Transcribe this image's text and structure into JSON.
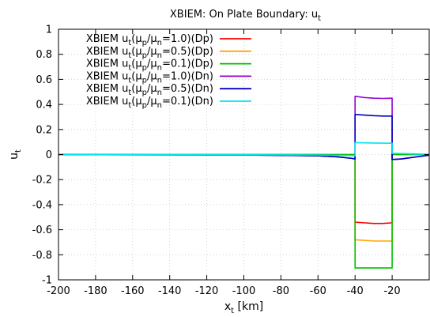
{
  "chart_data": {
    "type": "line",
    "title_parts": {
      "main": "XBIEM: On Plate Boundary: u",
      "sub": "t"
    },
    "xlabel_parts": {
      "main": "x",
      "sub": "t",
      "rest": " [km]"
    },
    "ylabel_parts": {
      "main": "u",
      "sub": "t"
    },
    "xlim": [
      -200,
      0
    ],
    "ylim": [
      -1,
      1
    ],
    "xticks": [
      -200,
      -180,
      -160,
      -140,
      -120,
      -100,
      -80,
      -60,
      -40,
      -20
    ],
    "yticks": [
      -1,
      -0.8,
      -0.6,
      -0.4,
      -0.2,
      0,
      0.2,
      0.4,
      0.6,
      0.8,
      1
    ],
    "ytick_labels": [
      "-1",
      "-0.8",
      "-0.6",
      "-0.4",
      "-0.2",
      "0",
      "0.2",
      "0.4",
      "0.6",
      "0.8",
      "1"
    ],
    "xtick_labels": [
      "-200",
      "-180",
      "-160",
      "-140",
      "-120",
      "-100",
      "-80",
      "-60",
      "-40",
      "-20"
    ],
    "grid": true,
    "legend_position": "top-left",
    "series": [
      {
        "name": "XBIEM u_t(μ_p/μ_n=1.0)(Dp)",
        "label_parts": [
          "XBIEM u",
          "t",
          "(μ",
          "p",
          "/μ",
          "n",
          "=1.0)(Dp)"
        ],
        "color": "#ff0000",
        "x": [
          -200,
          -40,
          -40,
          -35,
          -30,
          -25,
          -20,
          -20,
          0
        ],
        "y": [
          0,
          0,
          -0.54,
          -0.545,
          -0.55,
          -0.55,
          -0.545,
          0,
          0
        ]
      },
      {
        "name": "XBIEM u_t(μ_p/μ_n=0.5)(Dp)",
        "label_parts": [
          "XBIEM u",
          "t",
          "(μ",
          "p",
          "/μ",
          "n",
          "=0.5)(Dp)"
        ],
        "color": "#ffa500",
        "x": [
          -200,
          -40,
          -40,
          -35,
          -30,
          -25,
          -20,
          -20,
          0
        ],
        "y": [
          0,
          0,
          -0.68,
          -0.685,
          -0.69,
          -0.69,
          -0.69,
          0,
          0
        ]
      },
      {
        "name": "XBIEM u_t(μ_p/μ_n=0.1)(Dp)",
        "label_parts": [
          "XBIEM u",
          "t",
          "(μ",
          "p",
          "/μ",
          "n",
          "=0.1)(Dp)"
        ],
        "color": "#00c000",
        "x": [
          -200,
          -40,
          -40,
          -30,
          -20,
          -20,
          0
        ],
        "y": [
          0,
          0,
          -0.905,
          -0.905,
          -0.905,
          0,
          0
        ]
      },
      {
        "name": "XBIEM u_t(μ_p/μ_n=1.0)(Dn)",
        "label_parts": [
          "XBIEM u",
          "t",
          "(μ",
          "p",
          "/μ",
          "n",
          "=1.0)(Dn)"
        ],
        "color": "#9400d3",
        "x": [
          -200,
          -100,
          -60,
          -50,
          -42,
          -40,
          -40,
          -35,
          -30,
          -25,
          -20,
          -20,
          -15,
          -10,
          -5,
          0
        ],
        "y": [
          0,
          -0.004,
          -0.01,
          -0.018,
          -0.03,
          -0.035,
          0.465,
          0.455,
          0.45,
          0.448,
          0.45,
          -0.04,
          -0.035,
          -0.025,
          -0.015,
          -0.005
        ]
      },
      {
        "name": "XBIEM u_t(μ_p/μ_n=0.5)(Dn)",
        "label_parts": [
          "XBIEM u",
          "t",
          "(μ",
          "p",
          "/μ",
          "n",
          "=0.5)(Dn)"
        ],
        "color": "#0000c0",
        "x": [
          -200,
          -100,
          -60,
          -50,
          -42,
          -40,
          -40,
          -35,
          -30,
          -25,
          -20,
          -20,
          -15,
          -10,
          -5,
          0
        ],
        "y": [
          0,
          -0.004,
          -0.01,
          -0.018,
          -0.03,
          -0.035,
          0.32,
          0.315,
          0.31,
          0.307,
          0.307,
          -0.04,
          -0.035,
          -0.025,
          -0.015,
          -0.005
        ]
      },
      {
        "name": "XBIEM u_t(μ_p/μ_n=0.1)(Dn)",
        "label_parts": [
          "XBIEM u",
          "t",
          "(μ",
          "p",
          "/μ",
          "n",
          "=0.1)(Dn)"
        ],
        "color": "#00e5ee",
        "x": [
          -200,
          -100,
          -60,
          -42,
          -40,
          -40,
          -30,
          -20,
          -20,
          -10,
          0
        ],
        "y": [
          0,
          -0.002,
          -0.004,
          -0.008,
          -0.01,
          0.095,
          0.092,
          0.09,
          0.01,
          0.006,
          0.002
        ]
      }
    ]
  }
}
